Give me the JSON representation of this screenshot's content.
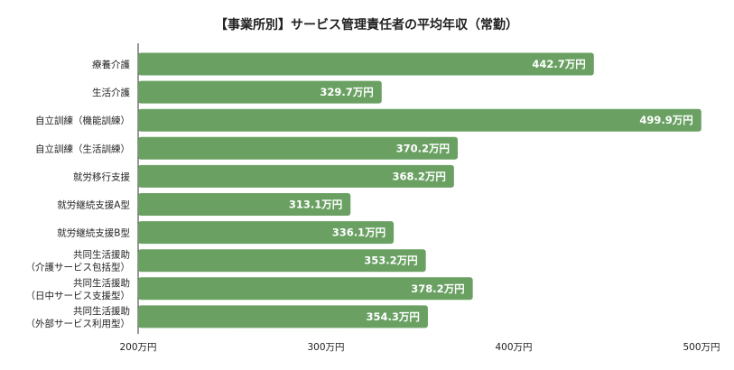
{
  "chart_data": {
    "type": "bar",
    "orientation": "horizontal",
    "title": "【事業所別】サービス管理責任者の平均年収（常勤）",
    "xlabel": "",
    "ylabel": "",
    "unit": "万円",
    "xlim": [
      200,
      500
    ],
    "ticks": [
      {
        "value": 200,
        "label": "200万円"
      },
      {
        "value": 300,
        "label": "300万円"
      },
      {
        "value": 400,
        "label": "400万円"
      },
      {
        "value": 500,
        "label": "500万円"
      }
    ],
    "categories": [
      [
        "療養介護"
      ],
      [
        "生活介護"
      ],
      [
        "自立訓練（機能訓練）"
      ],
      [
        "自立訓練（生活訓練）"
      ],
      [
        "就労移行支援"
      ],
      [
        "就労継続支援A型"
      ],
      [
        "就労継続支援B型"
      ],
      [
        "共同生活援助",
        "（介護サービス包括型）"
      ],
      [
        "共同生活援助",
        "（日中サービス支援型）"
      ],
      [
        "共同生活援助",
        "（外部サービス利用型）"
      ]
    ],
    "values": [
      442.7,
      329.7,
      499.9,
      370.2,
      368.2,
      313.1,
      336.1,
      353.2,
      378.2,
      354.3
    ],
    "value_labels": [
      "442.7万円",
      "329.7万円",
      "499.9万円",
      "370.2万円",
      "368.2万円",
      "313.1万円",
      "336.1万円",
      "353.2万円",
      "378.2万円",
      "354.3万円"
    ],
    "grid": false,
    "legend": "none",
    "bar_color": "#6aa163",
    "axis_color": "#333333"
  }
}
